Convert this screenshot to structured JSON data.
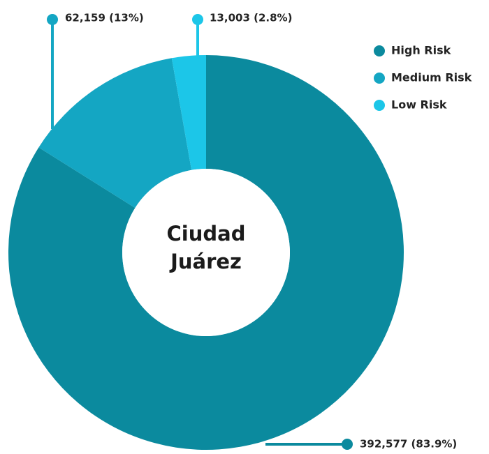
{
  "chart_data": {
    "type": "donut",
    "center_label": "Ciudad Juárez",
    "categories": [
      "High Risk",
      "Medium Risk",
      "Low Risk"
    ],
    "values": [
      392577,
      62159,
      13003
    ],
    "value_labels": [
      "392,577 (83.9%)",
      "62,159 (13%)",
      "13,003 (2.8%)"
    ],
    "colors": [
      "#0b8a9e",
      "#14a6c3",
      "#1cc6e8"
    ],
    "legend": "top-right"
  }
}
